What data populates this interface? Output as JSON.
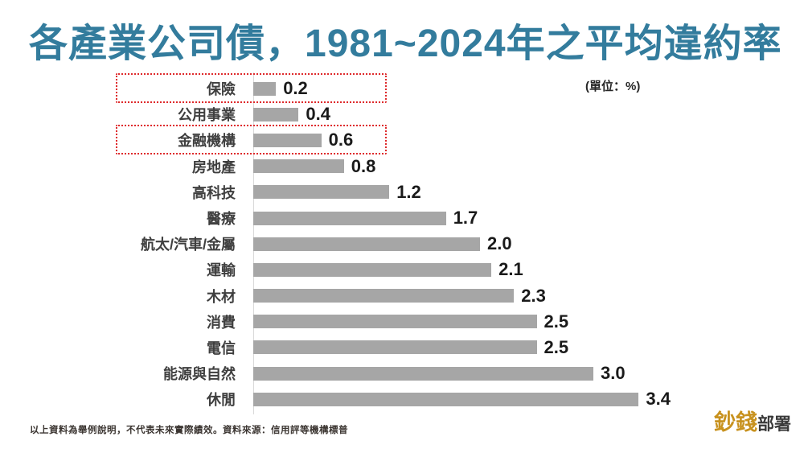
{
  "title": "各產業公司債，1981~2024年之平均違約率",
  "unit_label": "(單位：%)",
  "footer": {
    "disclaimer": "以上資料為舉例說明，不代表未來實際績效。資料來源：信用評等機構標普"
  },
  "logo": {
    "gold_text": "鈔錢",
    "dark_text": "部署"
  },
  "colors": {
    "title": "#337C9D",
    "bar": "#A6A6A6",
    "highlight_border": "#DE2A2C",
    "axis_line": "#D9D9D9",
    "logo_gold": "#C8921F"
  },
  "chart_data": {
    "type": "bar",
    "orientation": "horizontal",
    "title": "各產業公司債，1981~2024年之平均違約率",
    "unit": "%",
    "xlim": [
      0,
      3.4
    ],
    "grid": false,
    "legend": false,
    "categories": [
      "保險",
      "公用事業",
      "金融機構",
      "房地產",
      "高科技",
      "醫療",
      "航太/汽車/金屬",
      "運輸",
      "木材",
      "消費",
      "電信",
      "能源與自然",
      "休閒"
    ],
    "values": [
      0.2,
      0.4,
      0.6,
      0.8,
      1.2,
      1.7,
      2.0,
      2.1,
      2.3,
      2.5,
      2.5,
      3.0,
      3.4
    ],
    "value_labels": [
      "0.2",
      "0.4",
      "0.6",
      "0.8",
      "1.2",
      "1.7",
      "2.0",
      "2.1",
      "2.3",
      "2.5",
      "2.5",
      "3.0",
      "3.4"
    ],
    "highlighted_categories": [
      "保險",
      "金融機構"
    ]
  }
}
